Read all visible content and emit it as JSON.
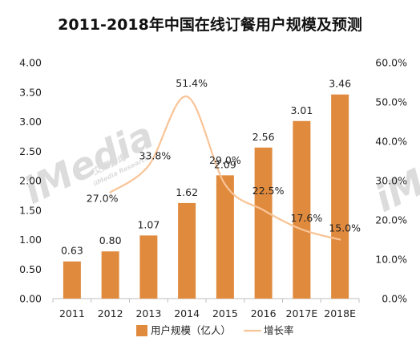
{
  "colors": {
    "bar": "#E08A3E",
    "line": "#F9C496",
    "axis": "#BFBFBF",
    "text": "#222222",
    "watermark": "#D9D9D9"
  },
  "watermark": {
    "brand": "iMedia",
    "cn": "艾媒咨询",
    "en": "iiMedia Research"
  },
  "chart_data": {
    "type": "bar",
    "title": "2011-2018年中国在线订餐用户规模及预测",
    "categories": [
      "2011",
      "2012",
      "2013",
      "2014",
      "2015",
      "2016",
      "2017E",
      "2018E"
    ],
    "series": [
      {
        "name": "用户规模（亿人）",
        "type": "bar",
        "axis": "left",
        "values": [
          0.63,
          0.8,
          1.07,
          1.62,
          2.09,
          2.56,
          3.01,
          3.46
        ],
        "labels": [
          "0.63",
          "0.80",
          "1.07",
          "1.62",
          "2.09",
          "2.56",
          "3.01",
          "3.46"
        ]
      },
      {
        "name": "增长率",
        "type": "line",
        "axis": "right",
        "smooth": true,
        "values": [
          null,
          27.0,
          33.8,
          51.4,
          29.0,
          22.5,
          17.6,
          15.0
        ],
        "labels": [
          null,
          "27.0%",
          "33.8%",
          "51.4%",
          "29.0%",
          "22.5%",
          "17.6%",
          "15.0%"
        ]
      }
    ],
    "y_left": {
      "ylim": [
        0,
        4
      ],
      "ticks": [
        "0.00",
        "0.50",
        "1.00",
        "1.50",
        "2.00",
        "2.50",
        "3.00",
        "3.50",
        "4.00"
      ]
    },
    "y_right": {
      "ylim": [
        0,
        60
      ],
      "ticks": [
        "0.0%",
        "10.0%",
        "20.0%",
        "30.0%",
        "40.0%",
        "50.0%",
        "60.0%"
      ]
    },
    "legend": {
      "position": "bottom",
      "items": [
        "用户规模（亿人）",
        "增长率"
      ]
    },
    "grid": false
  }
}
